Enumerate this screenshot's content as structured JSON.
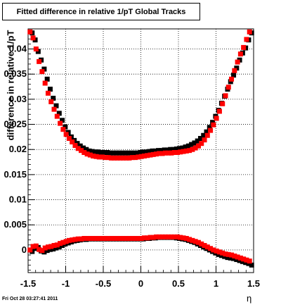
{
  "title": "Fitted difference in relative 1/pT  Global Tracks",
  "footer": "Fri Oct 28 03:27:41 2011",
  "chart_data": {
    "type": "scatter",
    "title": "Fitted difference in relative 1/pT  Global Tracks",
    "xlabel": "η",
    "ylabel": "difference in relative 1/pT",
    "xlim": [
      -1.5,
      1.5
    ],
    "ylim": [
      -0.0045,
      0.044
    ],
    "grid": true,
    "xticks": [
      -1.5,
      -1,
      -0.5,
      0,
      0.5,
      1,
      1.5
    ],
    "xtick_labels": [
      "-1.5",
      "-1",
      "-0.5",
      "0",
      "0.5",
      "1",
      "1.5"
    ],
    "yticks": [
      0,
      0.005,
      0.01,
      0.015,
      0.02,
      0.025,
      0.03,
      0.035,
      0.04
    ],
    "ytick_labels": [
      "0",
      "0.005",
      "0.01",
      "0.015",
      "0.02",
      "0.025",
      "0.03",
      "0.035",
      "0.04"
    ],
    "x": [
      -1.46,
      -1.42,
      -1.38,
      -1.34,
      -1.3,
      -1.26,
      -1.22,
      -1.18,
      -1.14,
      -1.1,
      -1.06,
      -1.02,
      -0.98,
      -0.94,
      -0.9,
      -0.86,
      -0.82,
      -0.78,
      -0.74,
      -0.7,
      -0.66,
      -0.62,
      -0.58,
      -0.54,
      -0.5,
      -0.46,
      -0.42,
      -0.38,
      -0.34,
      -0.3,
      -0.26,
      -0.22,
      -0.18,
      -0.14,
      -0.1,
      -0.06,
      -0.02,
      0.02,
      0.06,
      0.1,
      0.14,
      0.18,
      0.22,
      0.26,
      0.3,
      0.34,
      0.38,
      0.42,
      0.46,
      0.5,
      0.54,
      0.58,
      0.62,
      0.66,
      0.7,
      0.74,
      0.78,
      0.82,
      0.86,
      0.9,
      0.94,
      0.98,
      1.02,
      1.06,
      1.1,
      1.14,
      1.18,
      1.22,
      1.26,
      1.3,
      1.34,
      1.38,
      1.42,
      1.46
    ],
    "series": [
      {
        "color": "#000000",
        "values": [
          0.0432,
          0.0418,
          0.0395,
          0.0378,
          0.036,
          0.034,
          0.032,
          0.0302,
          0.0287,
          0.0272,
          0.0258,
          0.0245,
          0.0234,
          0.0225,
          0.0218,
          0.0212,
          0.0207,
          0.0203,
          0.02,
          0.0197,
          0.0196,
          0.0195,
          0.0195,
          0.0194,
          0.0194,
          0.0194,
          0.0193,
          0.0193,
          0.0193,
          0.0193,
          0.0193,
          0.0193,
          0.0193,
          0.0193,
          0.0193,
          0.0193,
          0.0194,
          0.0195,
          0.0195,
          0.0196,
          0.0197,
          0.0197,
          0.0198,
          0.0198,
          0.0199,
          0.0199,
          0.02,
          0.02,
          0.0201,
          0.0202,
          0.0203,
          0.0205,
          0.0207,
          0.021,
          0.0213,
          0.0217,
          0.0222,
          0.0228,
          0.0235,
          0.0244,
          0.0254,
          0.0266,
          0.0278,
          0.0292,
          0.0306,
          0.032,
          0.0335,
          0.0348,
          0.0362,
          0.0378,
          0.0392,
          0.0402,
          0.0418,
          0.0432
        ]
      },
      {
        "color": "#ff0000",
        "values": [
          0.0434,
          0.0422,
          0.04,
          0.0375,
          0.0355,
          0.0332,
          0.0312,
          0.0295,
          0.028,
          0.0266,
          0.0252,
          0.024,
          0.023,
          0.0222,
          0.0215,
          0.0208,
          0.0202,
          0.0198,
          0.0194,
          0.0191,
          0.0189,
          0.0187,
          0.0186,
          0.0185,
          0.0185,
          0.0184,
          0.0184,
          0.0183,
          0.0183,
          0.0183,
          0.0183,
          0.0183,
          0.0183,
          0.0183,
          0.0184,
          0.0184,
          0.0185,
          0.0186,
          0.0187,
          0.0188,
          0.0189,
          0.019,
          0.0191,
          0.0192,
          0.0192,
          0.0193,
          0.0193,
          0.0193,
          0.0194,
          0.0194,
          0.0195,
          0.0196,
          0.0197,
          0.0198,
          0.02,
          0.0203,
          0.0207,
          0.0212,
          0.0219,
          0.0228,
          0.0238,
          0.0249,
          0.0262,
          0.0276,
          0.0291,
          0.0307,
          0.0324,
          0.034,
          0.0357,
          0.0374,
          0.039,
          0.0403,
          0.0419,
          0.0434
        ]
      },
      {
        "color": "#000000",
        "values": [
          -0.0003,
          0.0003,
          0.0005,
          -0.0002,
          -0.0004,
          -0.0001,
          0.0001,
          0.0002,
          0.0004,
          0.0006,
          0.0009,
          0.0012,
          0.0014,
          0.0016,
          0.0018,
          0.0019,
          0.002,
          0.0021,
          0.0021,
          0.0022,
          0.0022,
          0.0022,
          0.0022,
          0.0022,
          0.0022,
          0.0022,
          0.0022,
          0.0022,
          0.0022,
          0.0022,
          0.0022,
          0.0022,
          0.0022,
          0.0022,
          0.0022,
          0.0022,
          0.0022,
          0.0022,
          0.0023,
          0.0023,
          0.0024,
          0.0024,
          0.0025,
          0.0025,
          0.0025,
          0.0025,
          0.0025,
          0.0025,
          0.0024,
          0.0023,
          0.0022,
          0.0021,
          0.0019,
          0.0017,
          0.0015,
          0.0012,
          0.0009,
          0.0006,
          0.0003,
          0.0,
          -0.0003,
          -0.0006,
          -0.0009,
          -0.0011,
          -0.0013,
          -0.0015,
          -0.0016,
          -0.0017,
          -0.0019,
          -0.0021,
          -0.0023,
          -0.0025,
          -0.0027,
          -0.003
        ]
      },
      {
        "color": "#ff0000",
        "values": [
          0.0,
          0.0007,
          0.0008,
          0.0001,
          -0.0001,
          0.0004,
          0.0006,
          0.0007,
          0.0009,
          0.001,
          0.0013,
          0.0015,
          0.0017,
          0.0019,
          0.002,
          0.0021,
          0.0022,
          0.0022,
          0.0023,
          0.0023,
          0.0023,
          0.0023,
          0.0023,
          0.0023,
          0.0023,
          0.0023,
          0.0023,
          0.0023,
          0.0023,
          0.0023,
          0.0023,
          0.0023,
          0.0023,
          0.0023,
          0.0023,
          0.0023,
          0.0023,
          0.0023,
          0.0024,
          0.0024,
          0.0025,
          0.0025,
          0.0026,
          0.0026,
          0.0026,
          0.0026,
          0.0026,
          0.0026,
          0.0026,
          0.0026,
          0.0025,
          0.0024,
          0.0023,
          0.0021,
          0.0019,
          0.0017,
          0.0015,
          0.0012,
          0.0009,
          0.0006,
          0.0003,
          0.0,
          -0.0002,
          -0.0004,
          -0.0006,
          -0.0008,
          -0.0009,
          -0.001,
          -0.0012,
          -0.0014,
          -0.0016,
          -0.0018,
          -0.002,
          -0.0022
        ]
      }
    ]
  }
}
